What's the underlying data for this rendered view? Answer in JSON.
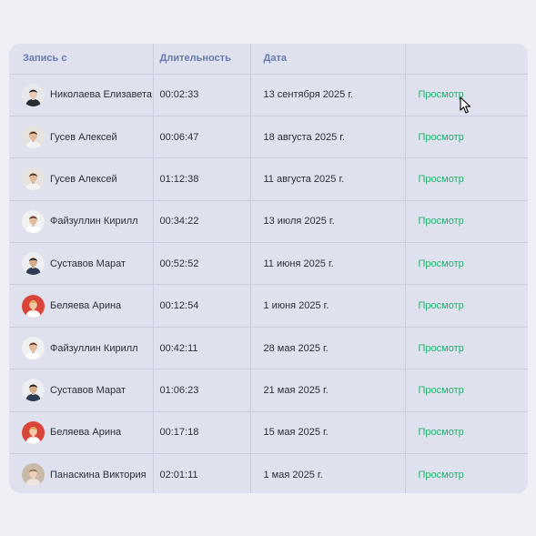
{
  "table": {
    "headers": [
      "Запись с",
      "Длительность",
      "Дата",
      ""
    ],
    "rows": [
      {
        "name": "Николаева Елизавета",
        "duration": "00:02:33",
        "date": "13 сентября 2025 г.",
        "action": "Просмотр",
        "avatar": {
          "bg": "#e9e9ec",
          "skin": "#e8c9b4",
          "hair": "#222226",
          "shirt": "#2b2b2f"
        }
      },
      {
        "name": "Гусев Алексей",
        "duration": "00:06:47",
        "date": "18 августа 2025 г.",
        "action": "Просмотр",
        "avatar": {
          "bg": "#e6e3de",
          "skin": "#e2b898",
          "hair": "#4a3426",
          "shirt": "#f2f2f2"
        }
      },
      {
        "name": "Гусев Алексей",
        "duration": "01:12:38",
        "date": "11 августа 2025 г.",
        "action": "Просмотр",
        "avatar": {
          "bg": "#e6e3de",
          "skin": "#e2b898",
          "hair": "#4a3426",
          "shirt": "#f2f2f2"
        }
      },
      {
        "name": "Файзуллин Кирилл",
        "duration": "00:34:22",
        "date": "13 июля 2025 г.",
        "action": "Просмотр",
        "avatar": {
          "bg": "#f1f1f1",
          "skin": "#e6bc9e",
          "hair": "#5a3a28",
          "shirt": "#ffffff"
        }
      },
      {
        "name": "Суставов Марат",
        "duration": "00:52:52",
        "date": "11 июня 2025 г.",
        "action": "Просмотр",
        "avatar": {
          "bg": "#eceef2",
          "skin": "#d9aa88",
          "hair": "#1e1e22",
          "shirt": "#2e3d55"
        }
      },
      {
        "name": "Беляева Арина",
        "duration": "00:12:54",
        "date": "1 июня 2025 г.",
        "action": "Просмотр",
        "avatar": {
          "bg": "#d9453a",
          "skin": "#f0caa8",
          "hair": "#e3a64a",
          "shirt": "#ffffff"
        }
      },
      {
        "name": "Файзуллин Кирилл",
        "duration": "00:42:11",
        "date": "28 мая 2025 г.",
        "action": "Просмотр",
        "avatar": {
          "bg": "#f1f1f1",
          "skin": "#e6bc9e",
          "hair": "#5a3a28",
          "shirt": "#ffffff"
        }
      },
      {
        "name": "Суставов Марат",
        "duration": "01:06:23",
        "date": "21 мая 2025 г.",
        "action": "Просмотр",
        "avatar": {
          "bg": "#eceef2",
          "skin": "#d9aa88",
          "hair": "#1e1e22",
          "shirt": "#2e3d55"
        }
      },
      {
        "name": "Беляева Арина",
        "duration": "00:17:18",
        "date": "15 мая 2025 г.",
        "action": "Просмотр",
        "avatar": {
          "bg": "#d9453a",
          "skin": "#f0caa8",
          "hair": "#e3a64a",
          "shirt": "#ffffff"
        }
      },
      {
        "name": "Панаскина Виктория",
        "duration": "02:01:11",
        "date": "1 мая 2025 г.",
        "action": "Просмотр",
        "avatar": {
          "bg": "#c9b9a8",
          "skin": "#efd0b8",
          "hair": "#8a6a4c",
          "shirt": "#ece6df"
        }
      }
    ]
  },
  "colors": {
    "page_bg": "#eef0f5",
    "card_bg": "#dfe2ee",
    "header_text": "#6a7ab0",
    "link": "#23b26d",
    "divider": "#c9cddd"
  },
  "cursor_icon": "arrow-pointer-icon"
}
